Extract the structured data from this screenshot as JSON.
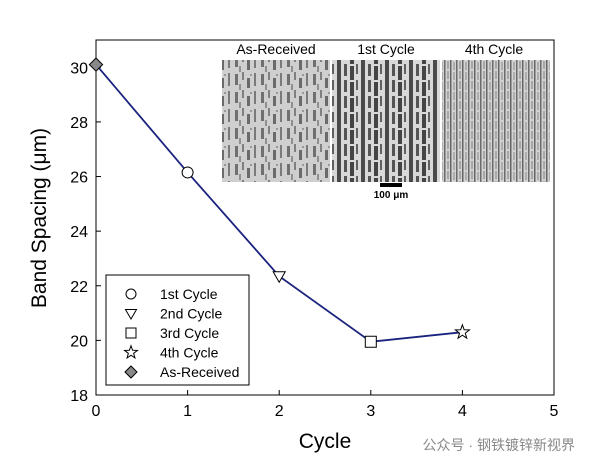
{
  "chart_data": {
    "type": "line",
    "xlabel": "Cycle",
    "ylabel": "Band Spacing (μm)",
    "xlim": [
      0,
      5
    ],
    "ylim": [
      18,
      31
    ],
    "xticks": [
      0,
      1,
      2,
      3,
      4,
      5
    ],
    "yticks": [
      18,
      20,
      22,
      24,
      26,
      28,
      30
    ],
    "grid": false,
    "legend_position": "bottom-left",
    "line_color": "#1a237e",
    "series": [
      {
        "name": "As-Received",
        "x": 0,
        "y": 30.1,
        "marker": "diamond",
        "fill": "#888888"
      },
      {
        "name": "1st Cycle",
        "x": 1,
        "y": 26.15,
        "marker": "circle",
        "fill": "#ffffff"
      },
      {
        "name": "2nd Cycle",
        "x": 2,
        "y": 22.35,
        "marker": "triangle-down",
        "fill": "#ffffff"
      },
      {
        "name": "3rd Cycle",
        "x": 3,
        "y": 19.95,
        "marker": "square",
        "fill": "#ffffff"
      },
      {
        "name": "4th Cycle",
        "x": 4,
        "y": 20.3,
        "marker": "star",
        "fill": "#ffffff"
      }
    ],
    "legend_entries": [
      {
        "label": "1st Cycle",
        "marker": "circle",
        "fill": "#ffffff"
      },
      {
        "label": "2nd Cycle",
        "marker": "triangle-down",
        "fill": "#ffffff"
      },
      {
        "label": "3rd Cycle",
        "marker": "square",
        "fill": "#ffffff"
      },
      {
        "label": "4th Cycle",
        "marker": "star",
        "fill": "#ffffff"
      },
      {
        "label": "As-Received",
        "marker": "diamond",
        "fill": "#888888"
      }
    ]
  },
  "insets": {
    "labels": [
      "As-Received",
      "1st Cycle",
      "4th Cycle"
    ],
    "scale_bar": "100 μm"
  },
  "watermark": "公众号 · 钢铁镀锌新视界"
}
